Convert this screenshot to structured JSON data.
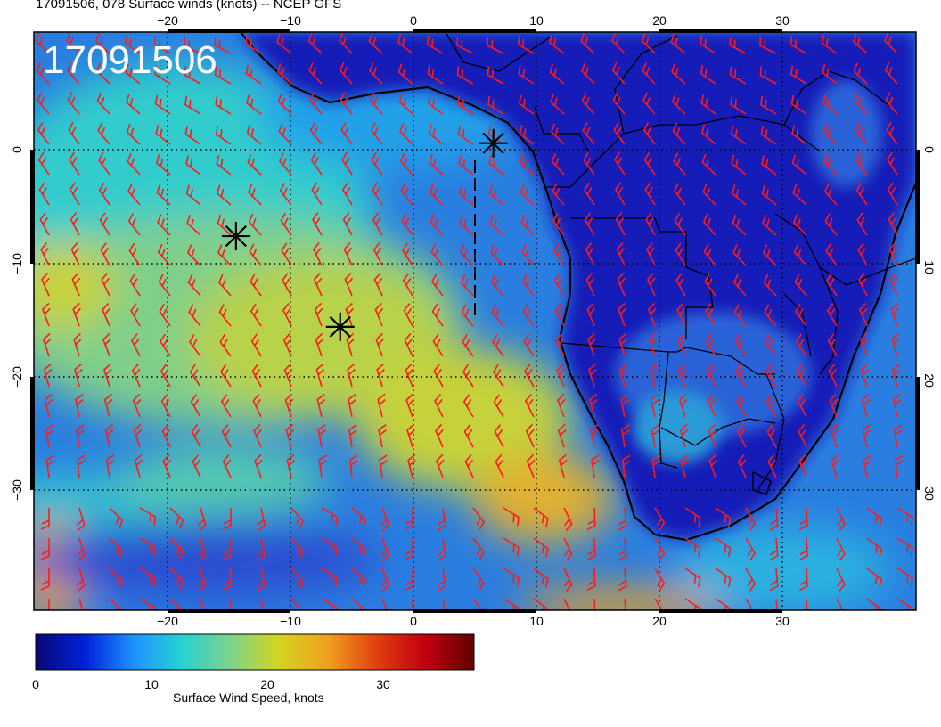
{
  "title": "17091506, 078 Surface winds (knots) -- NCEP GFS",
  "stamp": "17091506",
  "map": {
    "lon_range": [
      -31,
      41
    ],
    "lat_range": [
      -41,
      10
    ],
    "lon_ticks_bottom": [
      "−20",
      "−10",
      "0",
      "10",
      "20",
      "30"
    ],
    "lon_ticks_top": [
      "−20",
      "−10",
      "0",
      "10",
      "20",
      "30"
    ],
    "lat_ticks": [
      "0",
      "−10",
      "−20",
      "−30"
    ],
    "grid": "dotted, every 10 degrees",
    "markers": [
      {
        "type": "asterisk",
        "lon": -14.5,
        "lat": -8
      },
      {
        "type": "asterisk",
        "lon": -6,
        "lat": -16
      },
      {
        "type": "asterisk",
        "lon": 6.5,
        "lat": 0.2
      }
    ],
    "dashed_track": {
      "lon": 5,
      "lat_from": 0,
      "lat_to": -15
    },
    "colors": {
      "barb": "#ff1a1a",
      "coast": "#000000"
    }
  },
  "colorbar": {
    "title": "Surface Wind Speed, knots",
    "ticks": [
      "0",
      "10",
      "20",
      "30"
    ],
    "range": [
      0,
      38
    ],
    "stops": [
      "#080876",
      "#0020d8",
      "#1e90ff",
      "#28d2d2",
      "#7cd38a",
      "#d4d420",
      "#f0a020",
      "#e04010",
      "#c00010",
      "#600000"
    ]
  }
}
